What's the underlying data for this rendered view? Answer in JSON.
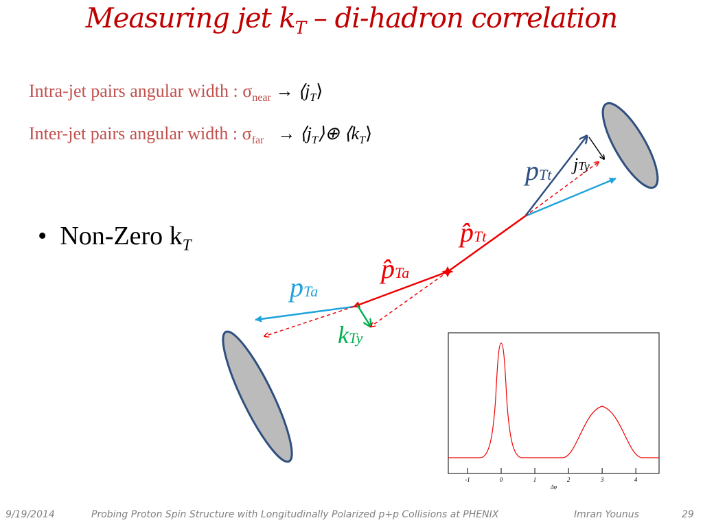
{
  "title": {
    "pre": "Measuring jet k",
    "sub": "T",
    "post": " – di-hadron correlation"
  },
  "lines": [
    {
      "label": "Intra-jet pairs angular width : ",
      "sigma": "σ",
      "sigma_sub": "near",
      "arrow": "→",
      "result": [
        "⟨j",
        "T",
        "⟩"
      ]
    },
    {
      "label": "Inter-jet pairs angular width : ",
      "sigma": "σ",
      "sigma_sub": "far",
      "arrow": "→",
      "result": [
        "⟨j",
        "T",
        "⟩⊕ ⟨k",
        "T",
        "⟩"
      ]
    }
  ],
  "bullet": {
    "text": "Non-Zero k",
    "sub": "T"
  },
  "diagram": {
    "p_Tt": [
      "p",
      "Tt"
    ],
    "j_Ty": [
      "j",
      "Ty"
    ],
    "phat_Tt": [
      "p̂",
      "Tt"
    ],
    "phat_Ta": [
      "p̂",
      "Ta"
    ],
    "p_Ta": [
      "p",
      "Ta"
    ],
    "k_Ty": [
      "k",
      "Ty"
    ]
  },
  "plot": {
    "xlabel": "Δφ",
    "xlim": [
      -1.57,
      4.69
    ],
    "xticks": [
      -1,
      0,
      1,
      2,
      3,
      4
    ]
  },
  "footer": {
    "date": "9/19/2014",
    "talk": "Probing Proton Spin Structure with Longitudinally Polarized p+p Collisions at PHENIX",
    "author": "Imran Younus",
    "page": "29"
  }
}
